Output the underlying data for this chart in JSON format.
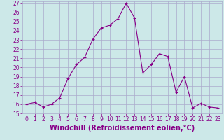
{
  "x": [
    0,
    1,
    2,
    3,
    4,
    5,
    6,
    7,
    8,
    9,
    10,
    11,
    12,
    13,
    14,
    15,
    16,
    17,
    18,
    19,
    20,
    21,
    22,
    23
  ],
  "y": [
    16,
    16.2,
    15.7,
    16,
    16.7,
    18.8,
    20.3,
    21.1,
    23.1,
    24.3,
    24.6,
    25.3,
    27.0,
    25.4,
    19.4,
    20.3,
    21.5,
    21.2,
    17.3,
    19.0,
    15.6,
    16.1,
    15.7,
    15.6
  ],
  "line_color": "#880088",
  "marker": "+",
  "marker_size": 3,
  "bg_color": "#cce8e8",
  "grid_color": "#aaaacc",
  "xlabel": "Windchill (Refroidissement éolien,°C)",
  "xlabel_fontsize": 7,
  "ylim": [
    15,
    27
  ],
  "xlim": [
    -0.5,
    23.5
  ],
  "yticks": [
    15,
    16,
    17,
    18,
    19,
    20,
    21,
    22,
    23,
    24,
    25,
    26,
    27
  ],
  "xticks": [
    0,
    1,
    2,
    3,
    4,
    5,
    6,
    7,
    8,
    9,
    10,
    11,
    12,
    13,
    14,
    15,
    16,
    17,
    18,
    19,
    20,
    21,
    22,
    23
  ],
  "tick_fontsize": 5.5,
  "line_width": 0.8,
  "marker_edge_width": 0.8
}
